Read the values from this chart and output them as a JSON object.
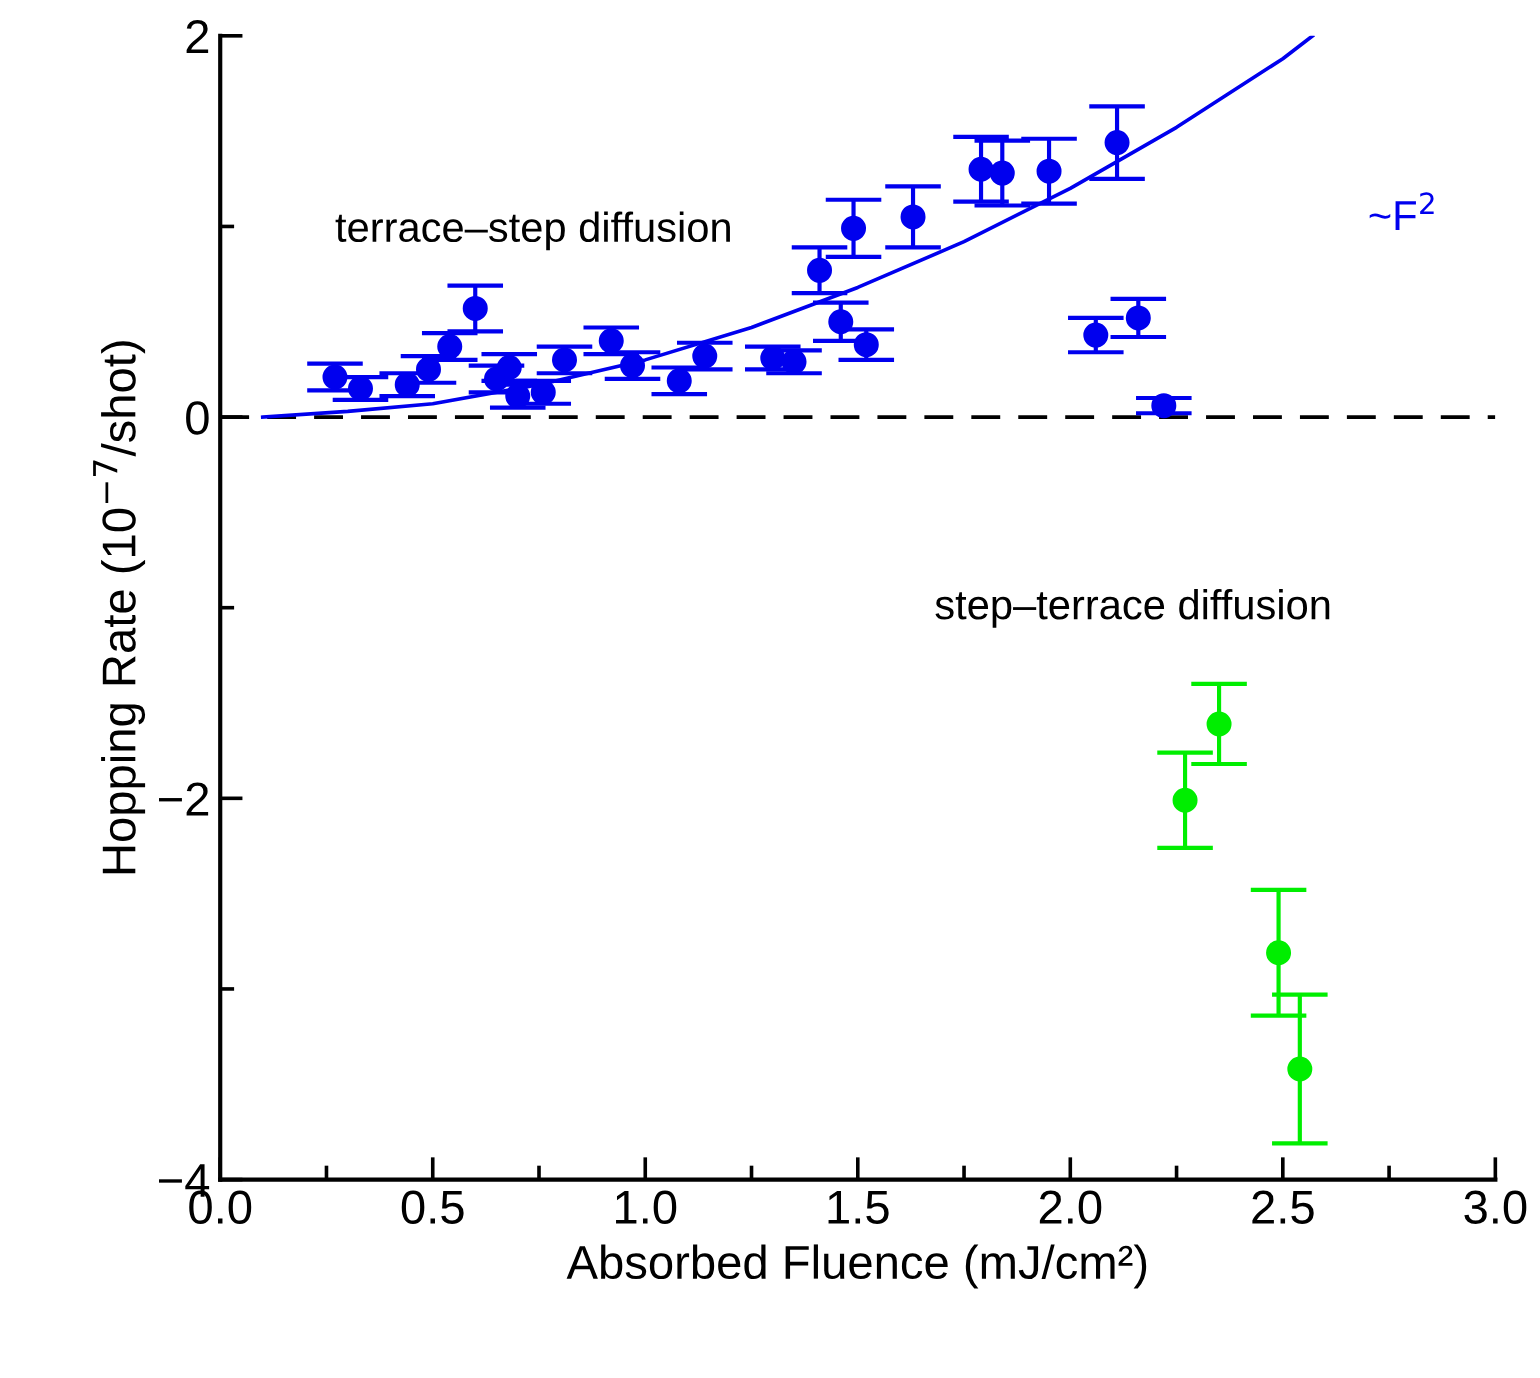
{
  "chart_data": {
    "type": "scatter",
    "xlabel": "Absorbed Fluence (mJ/cm²)",
    "ylabel": "Hopping Rate (10$^{−7}$/shot)",
    "xlim": [
      0,
      3
    ],
    "ylim": [
      -4,
      2
    ],
    "xticks": [
      {
        "value": 0,
        "label": "0.0"
      },
      {
        "value": 0.25,
        "label": null
      },
      {
        "value": 0.5,
        "label": "0.5"
      },
      {
        "value": 0.75,
        "label": null
      },
      {
        "value": 1,
        "label": "1.0"
      },
      {
        "value": 1.25,
        "label": null
      },
      {
        "value": 1.5,
        "label": "1.5"
      },
      {
        "value": 1.75,
        "label": null
      },
      {
        "value": 2,
        "label": "2.0"
      },
      {
        "value": 2.25,
        "label": null
      },
      {
        "value": 2.5,
        "label": "2.5"
      },
      {
        "value": 2.75,
        "label": null
      },
      {
        "value": 3,
        "label": "3.0"
      }
    ],
    "yticks": [
      {
        "value": -4,
        "label": "−4"
      },
      {
        "value": -3,
        "label": null
      },
      {
        "value": -2,
        "label": "−2"
      },
      {
        "value": -1,
        "label": null
      },
      0,
      {
        "value": 1,
        "label": null
      },
      2
    ],
    "grid": false,
    "legend": false,
    "marker": "circle",
    "ref_lines": [
      {
        "axis": "y",
        "value": 0,
        "color": "#000000",
        "line_style": "dashed"
      }
    ],
    "annotations": [
      "terrace–step diffusion",
      "step–terrace diffusion",
      "~F$^{2}$"
    ],
    "series": [
      {
        "color": "#0000ee",
        "x": [
          0.27,
          0.33,
          0.44,
          0.49,
          0.54,
          0.6,
          0.65,
          0.68,
          0.7,
          0.76,
          0.81,
          0.92,
          0.97,
          1.08,
          1.14,
          1.3,
          1.35,
          1.41,
          1.46,
          1.49,
          1.52,
          1.63,
          1.79,
          1.84,
          1.95,
          2.06,
          2.11,
          2.16,
          2.22
        ],
        "values": [
          0.21,
          0.15,
          0.17,
          0.25,
          0.37,
          0.57,
          0.2,
          0.26,
          0.11,
          0.13,
          0.3,
          0.4,
          0.27,
          0.19,
          0.32,
          0.31,
          0.29,
          0.77,
          0.5,
          0.99,
          0.38,
          1.05,
          1.3,
          1.28,
          1.29,
          0.43,
          1.44,
          0.52,
          0.06
        ],
        "errors": [
          0.07,
          0.06,
          0.06,
          0.07,
          0.07,
          0.12,
          0.07,
          0.07,
          0.06,
          0.06,
          0.07,
          0.07,
          0.07,
          0.07,
          0.07,
          0.06,
          0.06,
          0.12,
          0.1,
          0.15,
          0.08,
          0.16,
          0.17,
          0.17,
          0.17,
          0.09,
          0.19,
          0.1,
          0.04
        ]
      },
      {
        "color": "#00ee00",
        "x": [
          2.27,
          2.35,
          2.49,
          2.54
        ],
        "values": [
          -2.01,
          -1.61,
          -2.81,
          -3.42
        ],
        "errors": [
          0.25,
          0.21,
          0.33,
          0.39
        ]
      },
      {
        "type": "line",
        "color": "#0000ee",
        "marker": "none",
        "x": [
          0.1,
          0.3,
          0.5,
          0.75,
          1.0,
          1.25,
          1.5,
          1.75,
          2.0,
          2.25,
          2.5,
          2.57
        ],
        "values": [
          0.0,
          0.03,
          0.07,
          0.17,
          0.3,
          0.47,
          0.68,
          0.92,
          1.2,
          1.52,
          1.88,
          2.0
        ]
      }
    ]
  }
}
